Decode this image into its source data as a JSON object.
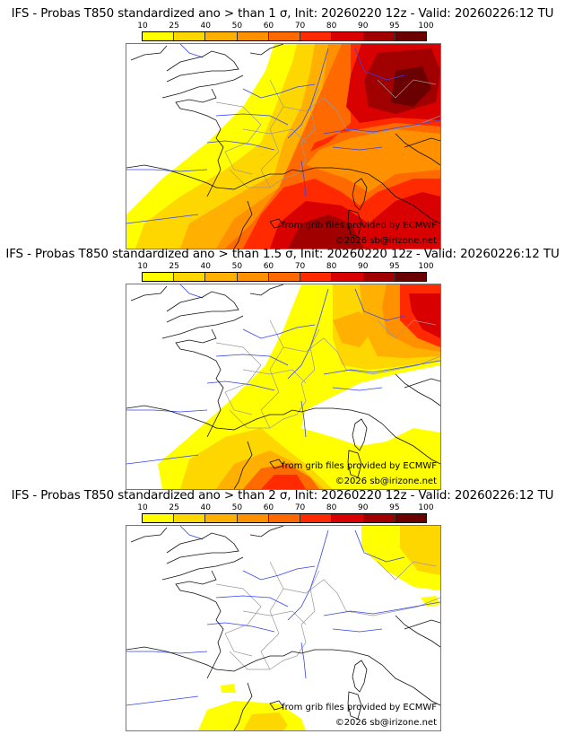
{
  "panels": [
    {
      "title": "IFS - Probas T850  standardized ano > than 1 σ, Init: 20260220 12z - Valid: 20260226:12 TU",
      "threshold_sigma": "1",
      "credit_source": "from grib files provided by ECMWF",
      "credit_copyright": "©2026 sb@irizone.net"
    },
    {
      "title": "IFS - Probas T850  standardized ano > than 1.5 σ, Init: 20260220 12z - Valid: 20260226:12 TU",
      "threshold_sigma": "1.5",
      "credit_source": "from grib files provided by ECMWF",
      "credit_copyright": "©2026 sb@irizone.net"
    },
    {
      "title": "IFS - Probas T850  standardized ano > than 2 σ, Init: 20260220 12z - Valid: 20260226:12 TU",
      "threshold_sigma": "2",
      "credit_source": "from grib files provided by ECMWF",
      "credit_copyright": "©2026 sb@irizone.net"
    }
  ],
  "colorbar": {
    "labels": [
      "10",
      "25",
      "40",
      "50",
      "60",
      "70",
      "80",
      "90",
      "95",
      "100"
    ],
    "colors": [
      "#ffff00",
      "#ffd700",
      "#ffb000",
      "#ff9000",
      "#ff6a00",
      "#ff2a00",
      "#d80000",
      "#a00000",
      "#6a0000"
    ]
  },
  "map_colors": {
    "coast": "#000000",
    "rivers": "#3333ff",
    "borders": "#aaaaaa"
  }
}
